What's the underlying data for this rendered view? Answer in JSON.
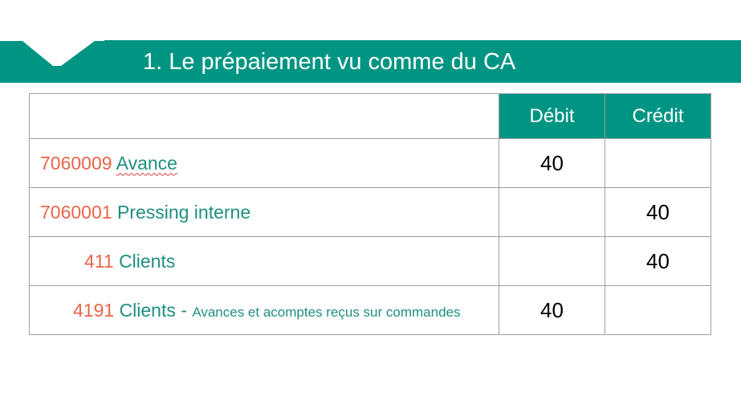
{
  "slide": {
    "title": "1. Le prépaiement vu comme du CA",
    "accent_color": "#009583",
    "code_color": "#e8654a",
    "name_color": "#1f8f80"
  },
  "table": {
    "headers": {
      "debit": "Débit",
      "credit": "Crédit"
    },
    "rows": [
      {
        "code": "7060009",
        "name": "Avance",
        "detail": "",
        "debit": "40",
        "credit": ""
      },
      {
        "code": "7060001",
        "name": "Pressing interne",
        "detail": "",
        "debit": "",
        "credit": "40"
      },
      {
        "code": "411",
        "name": "Clients",
        "detail": "",
        "debit": "",
        "credit": "40"
      },
      {
        "code": "4191",
        "name": "Clients - ",
        "detail": "Avances et acomptes reçus sur commandes",
        "debit": "40",
        "credit": ""
      }
    ]
  }
}
